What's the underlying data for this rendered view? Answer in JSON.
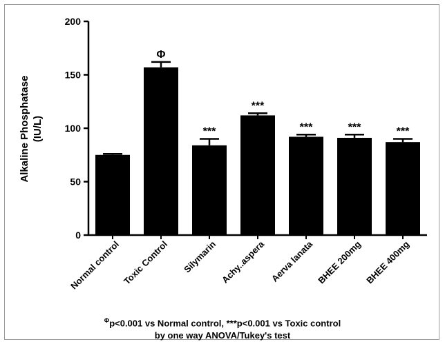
{
  "chart_data": {
    "type": "bar",
    "ylabel_line1": "Alkaline Phosphatase",
    "ylabel_line2": "(IU/L)",
    "ylim": [
      0,
      200
    ],
    "yticks": [
      0,
      50,
      100,
      150,
      200
    ],
    "categories": [
      "Normal control",
      "Toxic Control",
      "Silymarin",
      "Achy..aspera",
      "Aerva lanata",
      "BHEE 200mg",
      "BHEE 400mg"
    ],
    "values": [
      75,
      157,
      84,
      112,
      92,
      91,
      87
    ],
    "errors": [
      1,
      5,
      6,
      2,
      2,
      3,
      3
    ],
    "significance": [
      "",
      "Φ",
      "***",
      "***",
      "***",
      "***",
      "***"
    ],
    "bar_color": "#000000",
    "grid": false
  },
  "footnote": {
    "symbol": "Φ",
    "line1_rest": "p<0.001 vs Normal control, ***p<0.001 vs Toxic control",
    "line2": "by one way ANOVA/Tukey's test"
  }
}
